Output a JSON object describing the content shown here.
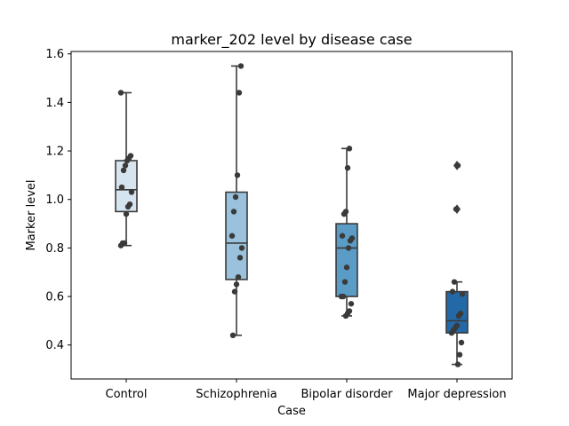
{
  "chart_data": {
    "type": "box",
    "title": "marker_202 level by disease case",
    "xlabel": "Case",
    "ylabel": "Marker level",
    "ylim": [
      0.26,
      1.61
    ],
    "yticks": [
      0.4,
      0.6,
      0.8,
      1.0,
      1.2,
      1.4,
      1.6
    ],
    "ytick_labels": [
      "0.4",
      "0.6",
      "0.8",
      "1.0",
      "1.2",
      "1.4",
      "1.6"
    ],
    "grid": false,
    "categories": [
      "Control",
      "Schizophrenia",
      "Bipolar disorder",
      "Major depression"
    ],
    "boxes": [
      {
        "name": "Control",
        "color": "#d6e4f0",
        "whisker_low": 0.81,
        "q1": 0.95,
        "median": 1.04,
        "q3": 1.16,
        "whisker_high": 1.44,
        "outliers": []
      },
      {
        "name": "Schizophrenia",
        "color": "#9ac2dc",
        "whisker_low": 0.44,
        "q1": 0.67,
        "median": 0.82,
        "q3": 1.03,
        "whisker_high": 1.55,
        "outliers": []
      },
      {
        "name": "Bipolar disorder",
        "color": "#5a9cc6",
        "whisker_low": 0.52,
        "q1": 0.6,
        "median": 0.8,
        "q3": 0.9,
        "whisker_high": 1.21,
        "outliers": []
      },
      {
        "name": "Major depression",
        "color": "#2369a8",
        "whisker_low": 0.32,
        "q1": 0.45,
        "median": 0.5,
        "q3": 0.62,
        "whisker_high": 0.66,
        "outliers": [
          1.14,
          0.96
        ]
      }
    ],
    "points": [
      {
        "category": "Control",
        "values": [
          1.44,
          1.18,
          1.17,
          1.16,
          1.14,
          1.12,
          1.05,
          1.03,
          0.98,
          0.97,
          0.94,
          0.82,
          0.82,
          0.81
        ]
      },
      {
        "category": "Schizophrenia",
        "values": [
          1.55,
          1.44,
          1.1,
          1.01,
          0.95,
          0.85,
          0.8,
          0.76,
          0.68,
          0.65,
          0.62,
          0.44
        ]
      },
      {
        "category": "Bipolar disorder",
        "values": [
          1.21,
          1.13,
          0.95,
          0.94,
          0.85,
          0.84,
          0.83,
          0.8,
          0.72,
          0.66,
          0.6,
          0.6,
          0.57,
          0.54,
          0.53,
          0.52
        ]
      },
      {
        "category": "Major depression",
        "values": [
          1.14,
          0.96,
          0.66,
          0.62,
          0.61,
          0.53,
          0.52,
          0.48,
          0.47,
          0.46,
          0.45,
          0.41,
          0.36,
          0.32
        ]
      }
    ],
    "point_color": "#3a3a3a",
    "line_color": "#3a3a3a"
  }
}
